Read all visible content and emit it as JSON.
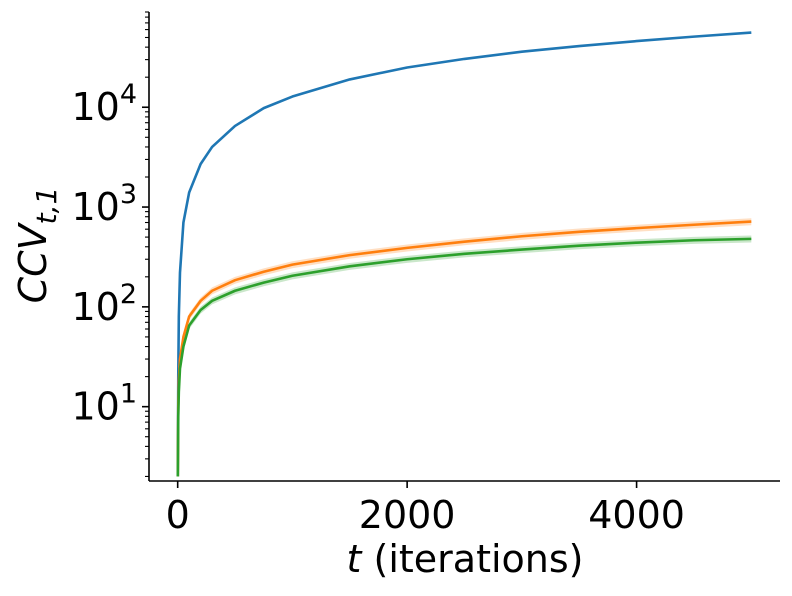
{
  "chart_data": {
    "type": "line",
    "title": "",
    "xlabel": {
      "italic": "t",
      "rest": " (iterations)"
    },
    "ylabel": {
      "italic": "CCV",
      "sub": "t,1"
    },
    "xlim": [
      -250,
      5250
    ],
    "ylim": [
      1.8,
      90000
    ],
    "yscale": "log",
    "grid": false,
    "x_ticks": [
      0,
      2000,
      4000
    ],
    "x_tick_labels": [
      "0",
      "2000",
      "4000"
    ],
    "y_ticks": [
      10,
      100,
      1000,
      10000
    ],
    "y_tick_labels": [
      {
        "base": "10",
        "exp": "1"
      },
      {
        "base": "10",
        "exp": "2"
      },
      {
        "base": "10",
        "exp": "3"
      },
      {
        "base": "10",
        "exp": "4"
      }
    ],
    "series": [
      {
        "color": "#1f77b4",
        "x": [
          1,
          5,
          10,
          20,
          50,
          100,
          200,
          300,
          500,
          750,
          1000,
          1500,
          2000,
          2500,
          3000,
          3500,
          4000,
          4500,
          5000
        ],
        "y": [
          2,
          20,
          80,
          220,
          700,
          1400,
          2700,
          4000,
          6500,
          9800,
          12800,
          19000,
          25000,
          30500,
          36000,
          41000,
          46000,
          51000,
          56000
        ],
        "band": 0
      },
      {
        "color": "#ff7f0e",
        "x": [
          1,
          5,
          10,
          20,
          50,
          100,
          200,
          300,
          500,
          750,
          1000,
          1500,
          2000,
          2500,
          3000,
          3500,
          4000,
          4500,
          5000
        ],
        "y": [
          2,
          10,
          18,
          30,
          50,
          80,
          115,
          145,
          185,
          225,
          265,
          330,
          390,
          450,
          510,
          565,
          615,
          665,
          715
        ],
        "band": 0.08
      },
      {
        "color": "#2ca02c",
        "x": [
          1,
          5,
          10,
          20,
          50,
          100,
          200,
          300,
          500,
          750,
          1000,
          1500,
          2000,
          2500,
          3000,
          3500,
          4000,
          4500,
          5000
        ],
        "y": [
          2,
          8,
          14,
          24,
          40,
          65,
          93,
          115,
          145,
          175,
          205,
          255,
          300,
          340,
          375,
          410,
          440,
          465,
          480
        ],
        "band": 0.08
      }
    ]
  }
}
